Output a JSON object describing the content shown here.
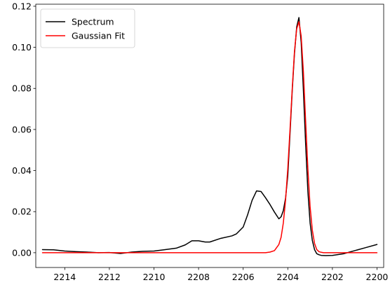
{
  "chart_data": {
    "type": "line",
    "title": "",
    "xlabel": "",
    "ylabel": "",
    "xlim": [
      2215.3,
      2199.7
    ],
    "ylim": [
      -0.0072,
      0.121
    ],
    "x_inverted": true,
    "grid": false,
    "legend_placement": "top-left",
    "xticks": [
      2214,
      2212,
      2210,
      2208,
      2206,
      2204,
      2202,
      2200
    ],
    "xtick_labels": [
      "2214",
      "2212",
      "2210",
      "2208",
      "2206",
      "2204",
      "2202",
      "2200"
    ],
    "yticks": [
      0.0,
      0.02,
      0.04,
      0.06,
      0.08,
      0.1,
      0.12
    ],
    "ytick_labels": [
      "0.00",
      "0.02",
      "0.04",
      "0.06",
      "0.08",
      "0.10",
      "0.12"
    ],
    "series": [
      {
        "name": "Spectrum",
        "color": "#000000",
        "x": [
          2215.0,
          2214.5,
          2214.0,
          2213.5,
          2213.0,
          2212.5,
          2212.0,
          2211.5,
          2211.0,
          2210.5,
          2210.0,
          2209.5,
          2209.0,
          2208.6,
          2208.3,
          2208.0,
          2207.7,
          2207.5,
          2207.0,
          2206.5,
          2206.3,
          2206.0,
          2205.8,
          2205.6,
          2205.4,
          2205.2,
          2205.0,
          2204.8,
          2204.6,
          2204.4,
          2204.3,
          2204.2,
          2204.1,
          2204.0,
          2203.9,
          2203.8,
          2203.7,
          2203.6,
          2203.5,
          2203.4,
          2203.3,
          2203.2,
          2203.1,
          2203.0,
          2202.9,
          2202.8,
          2202.7,
          2202.6,
          2202.5,
          2202.3,
          2202.0,
          2201.5,
          2201.0,
          2200.5,
          2200.0
        ],
        "y": [
          0.0015,
          0.0014,
          0.0008,
          0.0005,
          0.0003,
          0.0,
          0.0001,
          -0.0004,
          0.0003,
          0.0007,
          0.0008,
          0.0015,
          0.0022,
          0.0038,
          0.0058,
          0.0058,
          0.0052,
          0.0052,
          0.007,
          0.0082,
          0.0092,
          0.0125,
          0.0185,
          0.0255,
          0.0301,
          0.0298,
          0.0268,
          0.0235,
          0.0198,
          0.0165,
          0.0175,
          0.0205,
          0.0265,
          0.0375,
          0.058,
          0.079,
          0.097,
          0.11,
          0.1145,
          0.1025,
          0.079,
          0.053,
          0.03,
          0.0145,
          0.006,
          0.0015,
          -0.0005,
          -0.001,
          -0.0013,
          -0.0014,
          -0.0013,
          -0.0005,
          0.001,
          0.0025,
          0.004
        ]
      },
      {
        "name": "Gaussian Fit",
        "color": "#ff0000",
        "x": [
          2215.0,
          2213.0,
          2211.0,
          2209.0,
          2207.0,
          2206.0,
          2205.0,
          2204.8,
          2204.6,
          2204.4,
          2204.3,
          2204.2,
          2204.1,
          2204.0,
          2203.9,
          2203.8,
          2203.7,
          2203.6,
          2203.5,
          2203.4,
          2203.3,
          2203.2,
          2203.1,
          2203.0,
          2202.9,
          2202.8,
          2202.7,
          2202.6,
          2202.5,
          2202.4,
          2202.3,
          2202.0,
          2201.0,
          2200.0
        ],
        "y": [
          0.0,
          0.0,
          0.0,
          0.0,
          0.0,
          0.0,
          0.0,
          0.0003,
          0.001,
          0.004,
          0.0075,
          0.0145,
          0.0255,
          0.041,
          0.06,
          0.08,
          0.098,
          0.109,
          0.1125,
          0.1055,
          0.088,
          0.064,
          0.041,
          0.0225,
          0.011,
          0.0045,
          0.0015,
          0.0005,
          0.0002,
          0.0,
          0.0,
          0.0,
          0.0,
          0.0
        ]
      }
    ]
  }
}
